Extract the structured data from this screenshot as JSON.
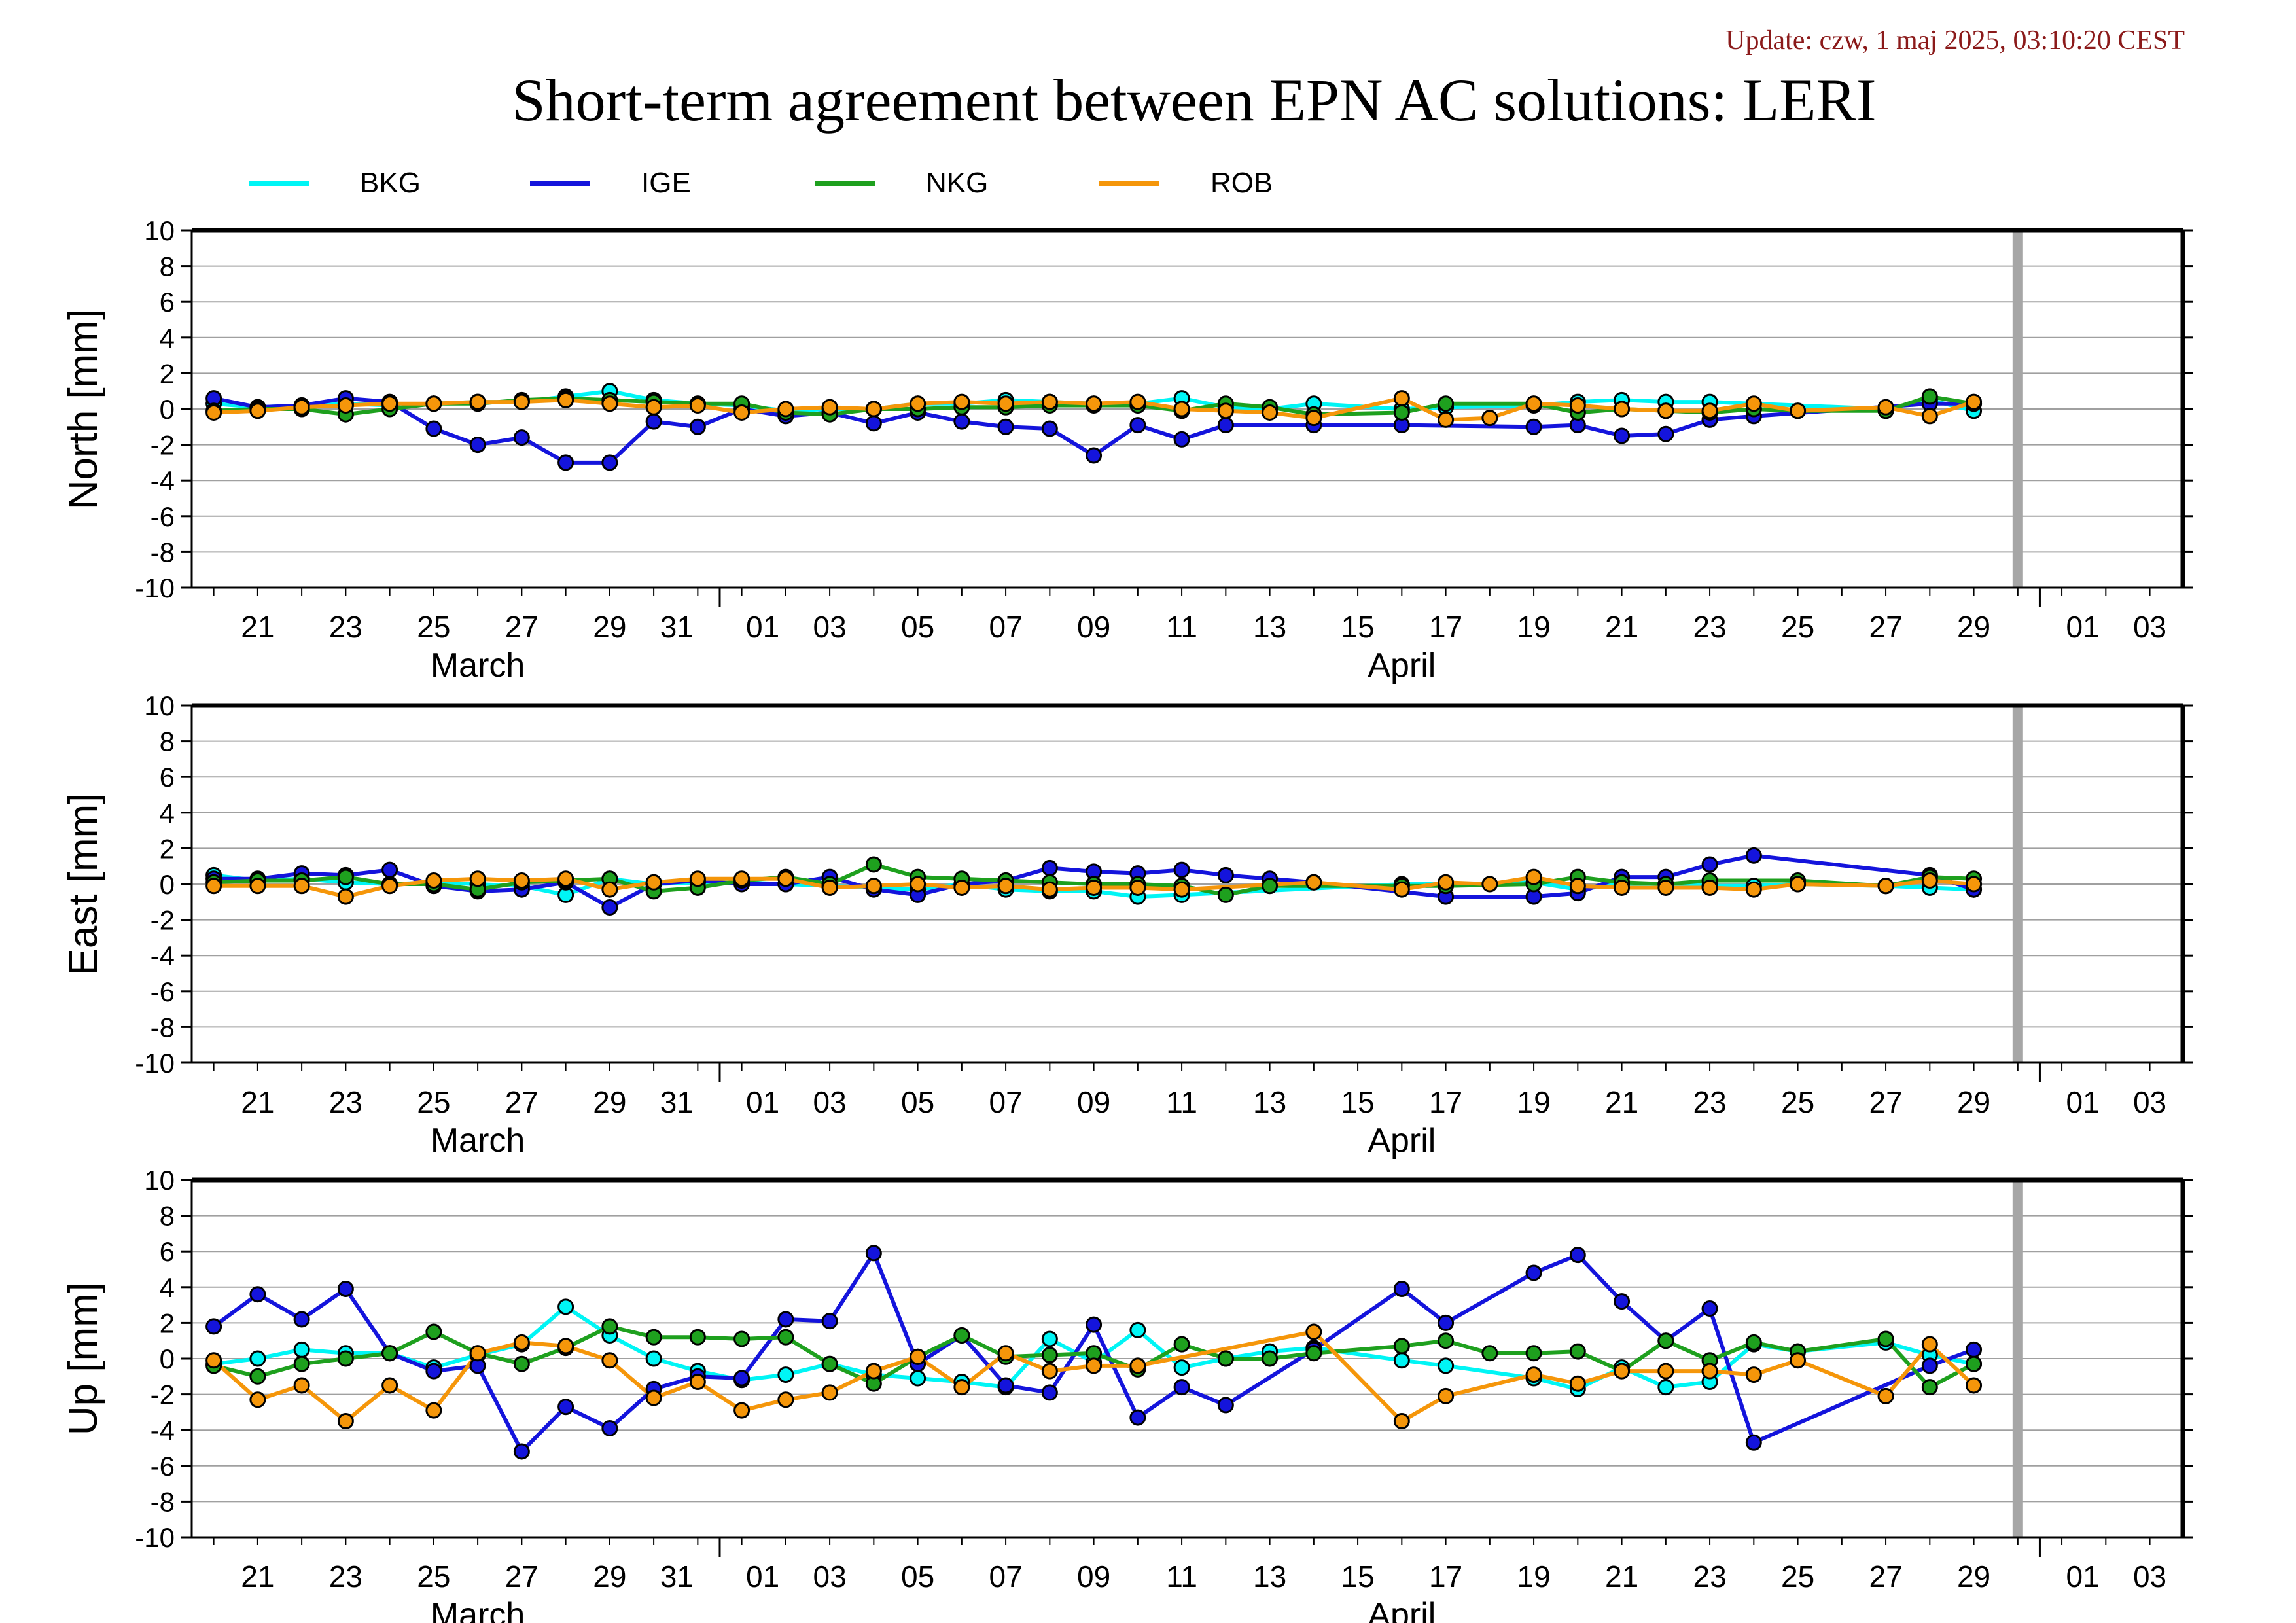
{
  "header": {
    "update": "Update: czw, 1 maj 2025, 03:10:20 CEST",
    "title": "Short-term agreement between EPN AC solutions: LERI"
  },
  "chart_data": {
    "type": "line",
    "x_axis": {
      "day_labels": [
        "21",
        "23",
        "25",
        "27",
        "29",
        "31",
        "01",
        "03",
        "05",
        "07",
        "09",
        "11",
        "13",
        "15",
        "17",
        "19",
        "21",
        "23",
        "25",
        "27",
        "29",
        "01",
        "03"
      ],
      "month_labels": [
        "March",
        "April"
      ]
    },
    "series_styles": [
      {
        "name": "BKG",
        "color": "#00f5f5"
      },
      {
        "name": "IGE",
        "color": "#1414dc"
      },
      {
        "name": "NKG",
        "color": "#1ea01e"
      },
      {
        "name": "ROB",
        "color": "#f5960a"
      }
    ],
    "x_dates": [
      "2025-03-20",
      "2025-03-21",
      "2025-03-22",
      "2025-03-23",
      "2025-03-24",
      "2025-03-25",
      "2025-03-26",
      "2025-03-27",
      "2025-03-28",
      "2025-03-29",
      "2025-03-30",
      "2025-03-31",
      "2025-04-01",
      "2025-04-02",
      "2025-04-03",
      "2025-04-04",
      "2025-04-05",
      "2025-04-06",
      "2025-04-07",
      "2025-04-08",
      "2025-04-09",
      "2025-04-10",
      "2025-04-11",
      "2025-04-12",
      "2025-04-13",
      "2025-04-14",
      "2025-04-15",
      "2025-04-16",
      "2025-04-17",
      "2025-04-18",
      "2025-04-19",
      "2025-04-20",
      "2025-04-21",
      "2025-04-22",
      "2025-04-23",
      "2025-04-24",
      "2025-04-25",
      "2025-04-26",
      "2025-04-27",
      "2025-04-28",
      "2025-04-29"
    ],
    "gray_marker_date": "2025-04-30",
    "panels": [
      {
        "ylabel": "North [mm]",
        "ylim": [
          -10,
          10
        ],
        "yticks": [
          10,
          8,
          6,
          4,
          2,
          0,
          -2,
          -4,
          -6,
          -8,
          -10
        ],
        "series": [
          {
            "name": "BKG",
            "values": [
              0.3,
              0.1,
              0.2,
              0.3,
              0.2,
              0.3,
              0.4,
              0.4,
              0.7,
              1.0,
              0.5,
              0.3,
              0.2,
              -0.1,
              0.0,
              0.0,
              0.3,
              0.3,
              0.5,
              0.4,
              0.3,
              0.3,
              0.6,
              0.1,
              0.0,
              0.3,
              null,
              0.0,
              0.1,
              null,
              0.2,
              0.4,
              0.5,
              0.4,
              0.4,
              null,
              null,
              null,
              0.0,
              0.5,
              -0.1
            ]
          },
          {
            "name": "IGE",
            "values": [
              0.6,
              0.1,
              0.2,
              0.6,
              0.4,
              -1.1,
              -2.0,
              -1.6,
              -3.0,
              -3.0,
              -0.7,
              -1.0,
              0.0,
              -0.4,
              -0.2,
              -0.8,
              -0.2,
              -0.7,
              -1.0,
              -1.1,
              -2.6,
              -0.9,
              -1.7,
              -0.9,
              null,
              -0.9,
              null,
              -0.9,
              null,
              null,
              -1.0,
              -0.9,
              -1.5,
              -1.4,
              -0.6,
              -0.4,
              null,
              null,
              null,
              0.3,
              0.3
            ]
          },
          {
            "name": "NKG",
            "values": [
              -0.1,
              0.0,
              0.0,
              -0.3,
              0.0,
              0.3,
              0.3,
              0.5,
              0.6,
              0.5,
              0.4,
              0.3,
              0.3,
              -0.2,
              -0.3,
              0.0,
              0.0,
              0.1,
              0.1,
              0.2,
              0.2,
              0.2,
              -0.1,
              0.3,
              0.1,
              -0.3,
              null,
              -0.2,
              0.3,
              null,
              0.3,
              -0.2,
              0.0,
              -0.1,
              -0.2,
              0.0,
              -0.1,
              null,
              -0.1,
              0.7,
              0.3
            ]
          },
          {
            "name": "ROB",
            "values": [
              -0.2,
              -0.1,
              0.1,
              0.2,
              0.3,
              0.3,
              0.4,
              0.4,
              0.5,
              0.3,
              0.1,
              0.2,
              -0.2,
              0.0,
              0.1,
              0.0,
              0.3,
              0.4,
              0.3,
              0.4,
              0.3,
              0.4,
              0.0,
              -0.1,
              -0.2,
              -0.5,
              null,
              0.6,
              -0.6,
              -0.5,
              0.3,
              0.2,
              0.0,
              -0.1,
              -0.1,
              0.3,
              -0.1,
              null,
              0.1,
              -0.4,
              0.4
            ]
          }
        ]
      },
      {
        "ylabel": "East [mm]",
        "ylim": [
          -10,
          10
        ],
        "yticks": [
          10,
          8,
          6,
          4,
          2,
          0,
          -2,
          -4,
          -6,
          -8,
          -10
        ],
        "series": [
          {
            "name": "BKG",
            "values": [
              0.5,
              0.2,
              0.3,
              0.1,
              0.0,
              0.1,
              0.0,
              -0.1,
              -0.6,
              0.3,
              0.0,
              0.1,
              0.1,
              0.0,
              -0.1,
              -0.2,
              -0.3,
              0.0,
              -0.3,
              -0.4,
              -0.4,
              -0.7,
              -0.6,
              null,
              null,
              null,
              null,
              0.0,
              0.0,
              null,
              0.1,
              -0.3,
              0.0,
              0.0,
              -0.1,
              -0.1,
              0.0,
              null,
              -0.1,
              -0.2,
              -0.3
            ]
          },
          {
            "name": "IGE",
            "values": [
              0.3,
              0.3,
              0.6,
              0.5,
              0.8,
              -0.1,
              -0.4,
              -0.3,
              0.1,
              -1.3,
              0.0,
              0.2,
              0.0,
              0.0,
              0.4,
              -0.3,
              -0.6,
              0.0,
              0.2,
              0.9,
              0.7,
              0.6,
              0.8,
              0.5,
              0.3,
              0.1,
              null,
              null,
              -0.7,
              null,
              -0.7,
              -0.5,
              0.4,
              0.4,
              1.1,
              1.6,
              null,
              null,
              null,
              0.5,
              -0.3
            ]
          },
          {
            "name": "NKG",
            "values": [
              0.1,
              0.2,
              0.2,
              0.4,
              0.0,
              0.0,
              -0.3,
              0.1,
              0.2,
              0.3,
              -0.4,
              -0.2,
              0.2,
              0.4,
              0.0,
              1.1,
              0.4,
              0.3,
              0.2,
              0.1,
              0.0,
              0.0,
              -0.1,
              -0.6,
              -0.1,
              null,
              null,
              -0.1,
              -0.1,
              null,
              0.0,
              0.4,
              0.1,
              0.0,
              0.2,
              null,
              0.2,
              null,
              -0.1,
              0.4,
              0.3
            ]
          },
          {
            "name": "ROB",
            "values": [
              -0.1,
              -0.1,
              -0.1,
              -0.7,
              -0.1,
              0.2,
              0.3,
              0.2,
              0.3,
              -0.3,
              0.1,
              0.3,
              0.3,
              0.3,
              -0.2,
              -0.1,
              0.0,
              -0.2,
              -0.1,
              -0.3,
              -0.2,
              -0.2,
              -0.3,
              null,
              null,
              0.1,
              null,
              -0.3,
              0.1,
              0.0,
              0.4,
              -0.1,
              -0.2,
              -0.2,
              -0.2,
              -0.3,
              0.0,
              null,
              -0.1,
              0.2,
              0.0
            ]
          }
        ]
      },
      {
        "ylabel": "Up [mm]",
        "ylim": [
          -10,
          10
        ],
        "yticks": [
          10,
          8,
          6,
          4,
          2,
          0,
          -2,
          -4,
          -6,
          -8,
          -10
        ],
        "series": [
          {
            "name": "BKG",
            "values": [
              -0.3,
              0.0,
              0.5,
              0.3,
              0.3,
              -0.5,
              0.2,
              0.8,
              2.9,
              1.3,
              0.0,
              -0.7,
              -1.2,
              -0.9,
              -0.3,
              -0.9,
              -1.1,
              -1.3,
              -1.6,
              1.1,
              -0.2,
              1.6,
              -0.5,
              0.0,
              0.4,
              0.6,
              null,
              -0.1,
              -0.4,
              null,
              -1.1,
              -1.7,
              -0.5,
              -1.6,
              -1.3,
              0.8,
              0.4,
              null,
              0.9,
              0.2,
              -0.3
            ]
          },
          {
            "name": "IGE",
            "values": [
              1.8,
              3.6,
              2.2,
              3.9,
              0.3,
              -0.7,
              -0.4,
              -5.2,
              -2.7,
              -3.9,
              -1.7,
              -1.0,
              -1.1,
              2.2,
              2.1,
              5.9,
              -0.3,
              1.3,
              -1.5,
              -1.9,
              1.9,
              -3.3,
              -1.6,
              -2.6,
              null,
              0.5,
              null,
              3.9,
              2.0,
              null,
              4.8,
              5.8,
              3.2,
              1.0,
              2.8,
              -4.7,
              null,
              null,
              null,
              -0.4,
              0.5
            ]
          },
          {
            "name": "NKG",
            "values": [
              -0.4,
              -1.0,
              -0.3,
              0.0,
              0.3,
              1.5,
              0.3,
              -0.3,
              0.6,
              1.8,
              1.2,
              1.2,
              1.1,
              1.2,
              -0.3,
              -1.4,
              0.1,
              1.3,
              0.1,
              0.2,
              0.3,
              -0.6,
              0.8,
              0.0,
              0.0,
              0.3,
              null,
              0.7,
              1.0,
              0.3,
              0.3,
              0.4,
              -0.7,
              1.0,
              -0.1,
              0.9,
              0.4,
              null,
              1.1,
              -1.6,
              -0.3
            ]
          },
          {
            "name": "ROB",
            "values": [
              -0.1,
              -2.3,
              -1.5,
              -3.5,
              -1.5,
              -2.9,
              0.3,
              0.9,
              0.7,
              -0.1,
              -2.2,
              -1.3,
              -2.9,
              -2.3,
              -1.9,
              -0.7,
              0.1,
              -1.6,
              0.3,
              -0.7,
              -0.4,
              -0.4,
              null,
              null,
              null,
              1.5,
              null,
              -3.5,
              -2.1,
              null,
              -0.9,
              -1.4,
              -0.7,
              -0.7,
              -0.7,
              -0.9,
              -0.1,
              null,
              -2.1,
              0.8,
              -1.5
            ]
          }
        ]
      }
    ]
  }
}
